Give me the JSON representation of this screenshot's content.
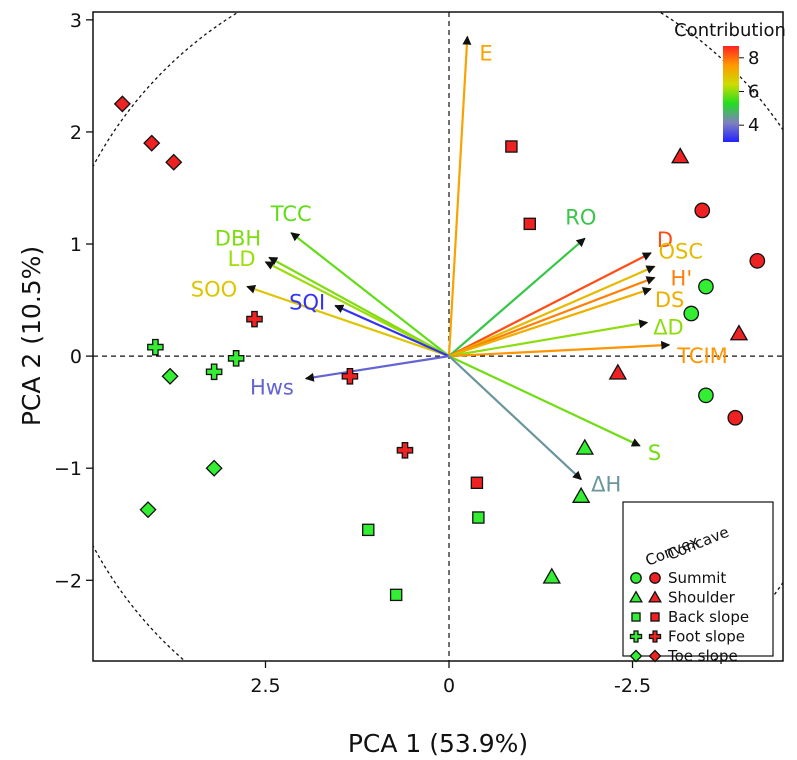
{
  "chart_data": {
    "type": "scatter",
    "subtype": "pca-biplot",
    "title": "",
    "xlabel": "PCA 1 (53.9%)",
    "ylabel": "PCA 2 (10.5%)",
    "x_axis_reversed": true,
    "xlim": [
      4.85,
      -4.55
    ],
    "ylim": [
      -2.72,
      3.07
    ],
    "xticks": [
      {
        "value": 2.5,
        "label": "2.5"
      },
      {
        "value": 0,
        "label": "0"
      },
      {
        "value": -2.5,
        "label": "-2.5"
      }
    ],
    "yticks": [
      {
        "value": 3,
        "label": "3"
      },
      {
        "value": 2,
        "label": "2"
      },
      {
        "value": 1,
        "label": "1"
      },
      {
        "value": 0,
        "label": "0"
      },
      {
        "value": -1,
        "label": "−1"
      },
      {
        "value": -2,
        "label": "−2"
      }
    ],
    "correlation_circle_radius": 4.35,
    "zero_lines": true,
    "grid": false,
    "colorbar": {
      "title": "Contribution",
      "ticks": [
        {
          "value": 8,
          "label": "8"
        },
        {
          "value": 6,
          "label": "6"
        },
        {
          "value": 4,
          "label": "4"
        }
      ],
      "range": [
        3,
        8.7
      ],
      "colors": [
        "#2222ff",
        "#8080c0",
        "#22dd22",
        "#ccdd00",
        "#ff9900",
        "#ff2222"
      ],
      "placement": "top-right"
    },
    "vectors": [
      {
        "label": "E",
        "x": -0.25,
        "y": 2.85,
        "contribution": 7.4
      },
      {
        "label": "TCC",
        "x": 2.15,
        "y": 1.1,
        "contribution": 5.7
      },
      {
        "label": "DBH",
        "x": 2.45,
        "y": 0.88,
        "contribution": 5.9
      },
      {
        "label": "LD",
        "x": 2.5,
        "y": 0.84,
        "contribution": 6.1
      },
      {
        "label": "SOO",
        "x": 2.75,
        "y": 0.62,
        "contribution": 6.8
      },
      {
        "label": "SQI",
        "x": 1.55,
        "y": 0.45,
        "contribution": 3.2
      },
      {
        "label": "Hws",
        "x": 1.95,
        "y": -0.2,
        "contribution": 3.8
      },
      {
        "label": "RO",
        "x": -1.85,
        "y": 1.05,
        "contribution": 5.0
      },
      {
        "label": "D",
        "x": -2.75,
        "y": 0.92,
        "contribution": 8.3
      },
      {
        "label": "OSC",
        "x": -2.8,
        "y": 0.8,
        "contribution": 7.0
      },
      {
        "label": "H'",
        "x": -2.8,
        "y": 0.7,
        "contribution": 7.8
      },
      {
        "label": "DS",
        "x": -2.75,
        "y": 0.6,
        "contribution": 7.2
      },
      {
        "label": "ΔD",
        "x": -2.7,
        "y": 0.3,
        "contribution": 6.0
      },
      {
        "label": "TCIM",
        "x": -3.0,
        "y": 0.1,
        "contribution": 7.6
      },
      {
        "label": "S",
        "x": -2.6,
        "y": -0.8,
        "contribution": 5.8
      },
      {
        "label": "ΔH",
        "x": -1.8,
        "y": -1.1,
        "contribution": 4.4
      }
    ],
    "legend": {
      "placement": "bottom-right",
      "column_headers": [
        "Convex",
        "Concave"
      ],
      "entries": [
        {
          "label": "Summit",
          "shape": "circle"
        },
        {
          "label": "Shoulder",
          "shape": "triangle"
        },
        {
          "label": "Back slope",
          "shape": "square"
        },
        {
          "label": "Foot slope",
          "shape": "cross"
        },
        {
          "label": "Toe slope",
          "shape": "diamond"
        }
      ],
      "convex_color": "#33ee33",
      "concave_color": "#ee2222"
    },
    "points": [
      {
        "x": -3.45,
        "y": 1.3,
        "shape": "circle",
        "group": "concave"
      },
      {
        "x": -4.2,
        "y": 0.85,
        "shape": "circle",
        "group": "concave"
      },
      {
        "x": -3.9,
        "y": -0.55,
        "shape": "circle",
        "group": "concave"
      },
      {
        "x": -3.5,
        "y": 0.62,
        "shape": "circle",
        "group": "convex"
      },
      {
        "x": -3.3,
        "y": 0.38,
        "shape": "circle",
        "group": "convex"
      },
      {
        "x": -3.5,
        "y": -0.35,
        "shape": "circle",
        "group": "convex"
      },
      {
        "x": -3.15,
        "y": 1.78,
        "shape": "triangle",
        "group": "concave"
      },
      {
        "x": -3.95,
        "y": 0.2,
        "shape": "triangle",
        "group": "concave"
      },
      {
        "x": -2.3,
        "y": -0.15,
        "shape": "triangle",
        "group": "concave"
      },
      {
        "x": -1.85,
        "y": -0.82,
        "shape": "triangle",
        "group": "convex"
      },
      {
        "x": -1.8,
        "y": -1.25,
        "shape": "triangle",
        "group": "convex"
      },
      {
        "x": -1.4,
        "y": -1.97,
        "shape": "triangle",
        "group": "convex"
      },
      {
        "x": -0.85,
        "y": 1.87,
        "shape": "square",
        "group": "concave"
      },
      {
        "x": -1.1,
        "y": 1.18,
        "shape": "square",
        "group": "concave"
      },
      {
        "x": -0.38,
        "y": -1.13,
        "shape": "square",
        "group": "concave"
      },
      {
        "x": -0.4,
        "y": -1.44,
        "shape": "square",
        "group": "convex"
      },
      {
        "x": 1.1,
        "y": -1.55,
        "shape": "square",
        "group": "convex"
      },
      {
        "x": 0.72,
        "y": -2.13,
        "shape": "square",
        "group": "convex"
      },
      {
        "x": 2.65,
        "y": 0.33,
        "shape": "cross",
        "group": "concave"
      },
      {
        "x": 1.35,
        "y": -0.18,
        "shape": "cross",
        "group": "concave"
      },
      {
        "x": 0.6,
        "y": -0.84,
        "shape": "cross",
        "group": "concave"
      },
      {
        "x": 4.0,
        "y": 0.08,
        "shape": "cross",
        "group": "convex"
      },
      {
        "x": 3.2,
        "y": -0.14,
        "shape": "cross",
        "group": "convex"
      },
      {
        "x": 2.9,
        "y": -0.02,
        "shape": "cross",
        "group": "convex"
      },
      {
        "x": 4.45,
        "y": 2.25,
        "shape": "diamond",
        "group": "concave"
      },
      {
        "x": 4.05,
        "y": 1.9,
        "shape": "diamond",
        "group": "concave"
      },
      {
        "x": 3.75,
        "y": 1.73,
        "shape": "diamond",
        "group": "concave"
      },
      {
        "x": 3.8,
        "y": -0.18,
        "shape": "diamond",
        "group": "convex"
      },
      {
        "x": 3.2,
        "y": -1.0,
        "shape": "diamond",
        "group": "convex"
      },
      {
        "x": 4.1,
        "y": -1.37,
        "shape": "diamond",
        "group": "convex"
      }
    ]
  }
}
